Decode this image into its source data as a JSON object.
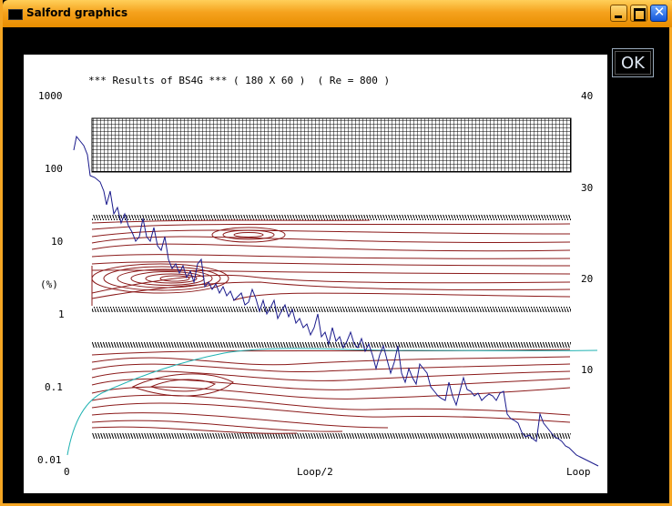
{
  "window": {
    "title": "Salford graphics",
    "ok_label": "OK"
  },
  "colors": {
    "title_bar": "#f5a21d",
    "convergence_curve": "#1a1a8c",
    "streamlines": "#8b1a1a",
    "cyan_curve": "#20b2b2",
    "hatch": "#000000"
  },
  "plot": {
    "title": "*** Results of BS4G *** ( 180 X 60 )  ( Re = 800 )",
    "left_axis": {
      "tick_labels": [
        "1000",
        "100",
        "10",
        "1",
        "0.1",
        "0.01"
      ],
      "unit_label": "(%)",
      "scale": "log"
    },
    "right_axis": {
      "tick_labels": [
        "40",
        "30",
        "20",
        "10"
      ]
    },
    "x_axis": {
      "tick_labels": [
        "0",
        "Loop/2",
        "Loop"
      ]
    }
  }
}
